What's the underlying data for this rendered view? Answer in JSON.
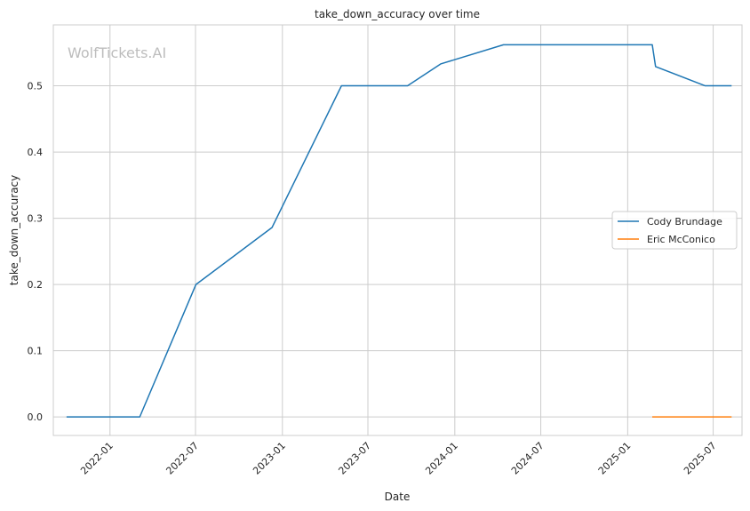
{
  "chart_data": {
    "type": "line",
    "title": "take_down_accuracy over time",
    "xlabel": "Date",
    "ylabel": "take_down_accuracy",
    "watermark": "WolfTickets.AI",
    "xlim": [
      "2021-09-03",
      "2025-08-31"
    ],
    "ylim": [
      -0.028,
      0.592
    ],
    "x_ticks": [
      "2022-01-01",
      "2022-07-01",
      "2023-01-01",
      "2023-07-01",
      "2024-01-01",
      "2024-07-01",
      "2025-01-01",
      "2025-07-01"
    ],
    "x_tick_labels": [
      "2022-01",
      "2022-07",
      "2023-01",
      "2023-07",
      "2024-01",
      "2024-07",
      "2025-01",
      "2025-07"
    ],
    "y_ticks": [
      0.0,
      0.1,
      0.2,
      0.3,
      0.4,
      0.5
    ],
    "y_tick_labels": [
      "0.0",
      "0.1",
      "0.2",
      "0.3",
      "0.4",
      "0.5"
    ],
    "grid": true,
    "legend_position": "center-right",
    "series": [
      {
        "name": "Cody Brundage",
        "color": "#1f77b4",
        "points": [
          {
            "x": "2021-10-01",
            "y": 0.0
          },
          {
            "x": "2022-03-05",
            "y": 0.0
          },
          {
            "x": "2022-07-02",
            "y": 0.2
          },
          {
            "x": "2022-12-10",
            "y": 0.286
          },
          {
            "x": "2023-05-06",
            "y": 0.5
          },
          {
            "x": "2023-09-23",
            "y": 0.5
          },
          {
            "x": "2023-12-02",
            "y": 0.533
          },
          {
            "x": "2024-04-13",
            "y": 0.562
          },
          {
            "x": "2025-02-22",
            "y": 0.562
          },
          {
            "x": "2025-03-01",
            "y": 0.529
          },
          {
            "x": "2025-06-14",
            "y": 0.5
          },
          {
            "x": "2025-08-09",
            "y": 0.5
          }
        ]
      },
      {
        "name": "Eric McConico",
        "color": "#ff7f0e",
        "points": [
          {
            "x": "2025-02-22",
            "y": 0.0
          },
          {
            "x": "2025-08-09",
            "y": 0.0
          }
        ]
      }
    ]
  }
}
